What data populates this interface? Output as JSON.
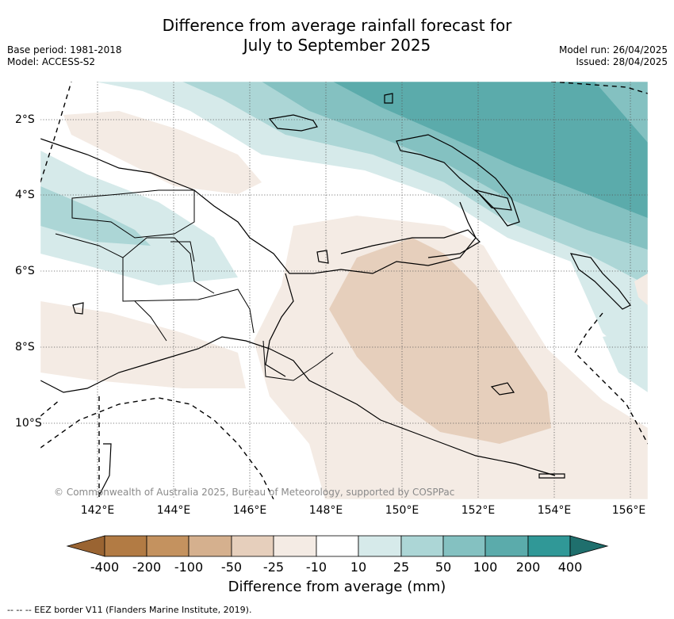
{
  "title_line1": "Difference from average rainfall forecast for",
  "title_line2": "July to September 2025",
  "meta_left": {
    "base_period": "Base period: 1981-2018",
    "model": "Model: ACCESS-S2"
  },
  "meta_right": {
    "model_run": "Model run: 26/04/2025",
    "issued": "Issued: 28/04/2025"
  },
  "credit": "© Commonwealth of Australia 2025, Bureau of Meteorology, supported by COSPPac",
  "lon_ticks": [
    "142°E",
    "144°E",
    "146°E",
    "148°E",
    "150°E",
    "152°E",
    "154°E",
    "156°E"
  ],
  "lat_ticks": [
    "2°S",
    "4°S",
    "6°S",
    "8°S",
    "10°S"
  ],
  "colorbar": {
    "title": "Difference from average (mm)",
    "labels": [
      "-400",
      "-200",
      "-100",
      "-50",
      "-25",
      "-10",
      "10",
      "25",
      "50",
      "100",
      "200",
      "400"
    ],
    "colors": {
      "below_min": "#9a6432",
      "bins": [
        "#b27b44",
        "#c4925f",
        "#d5b08e",
        "#e6cfbc",
        "#f4ebe4",
        "#ffffff",
        "#d6eaea",
        "#acd6d6",
        "#84c1c1",
        "#5babab",
        "#309897"
      ],
      "above_max": "#1f6f6d"
    }
  },
  "eez_legend": "-- -- -- EEZ border V11 (Flanders Marine Institute, 2019)."
}
